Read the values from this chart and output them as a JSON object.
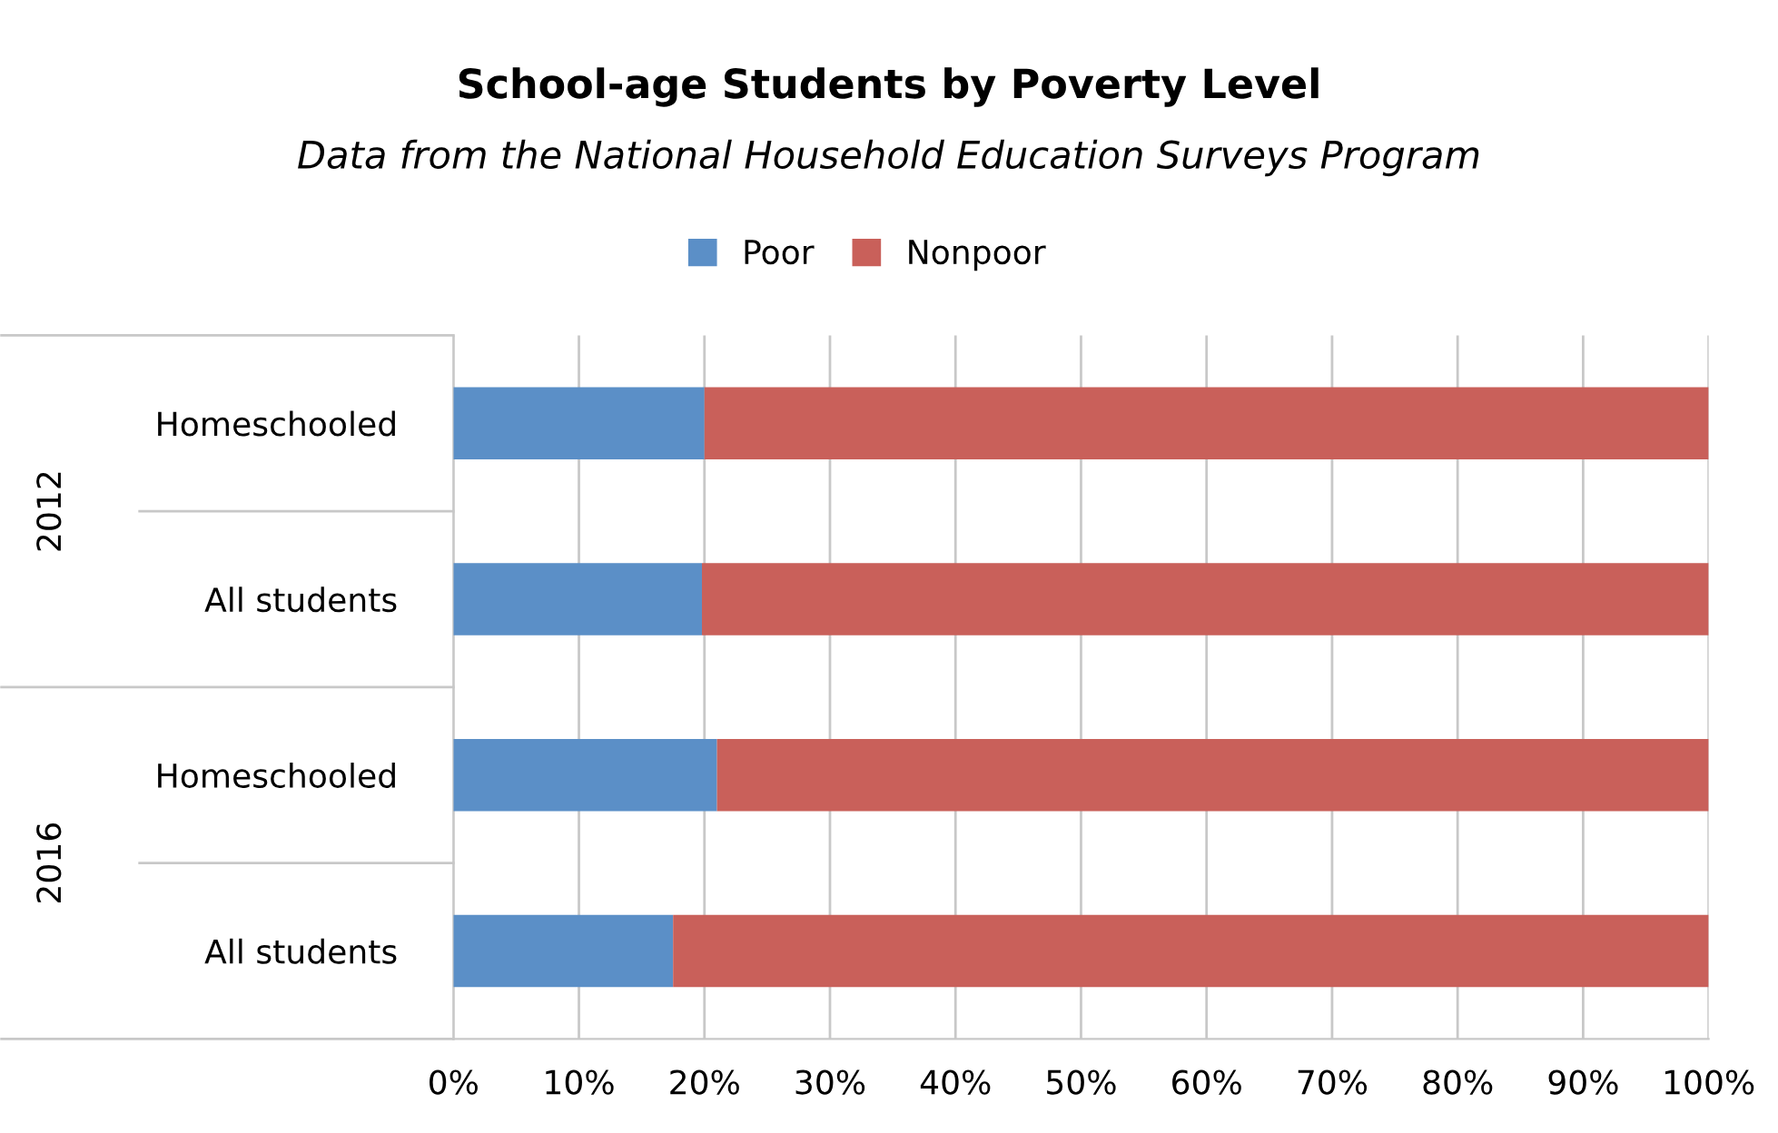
{
  "chart_data": {
    "type": "bar",
    "orientation": "horizontal",
    "stacked": true,
    "title": "School-age Students by Poverty Level",
    "subtitle": "Data from the National Household Education Surveys Program",
    "categories": [
      "Homeschooled",
      "All students",
      "Homeschooled",
      "All students"
    ],
    "annotations": [
      "2012",
      "2016"
    ],
    "series": [
      {
        "name": "Poor",
        "color": "#5b8fc7",
        "values": [
          20,
          19.8,
          21,
          17.5
        ]
      },
      {
        "name": "Nonpoor",
        "color": "#c9605a",
        "values": [
          80,
          80.2,
          79,
          82.5
        ]
      }
    ],
    "xlim": [
      0,
      100
    ],
    "xticks": [
      {
        "value": 0,
        "label": "0%"
      },
      {
        "value": 10,
        "label": "10%"
      },
      {
        "value": 20,
        "label": "20%"
      },
      {
        "value": 30,
        "label": "30%"
      },
      {
        "value": 40,
        "label": "40%"
      },
      {
        "value": 50,
        "label": "50%"
      },
      {
        "value": 60,
        "label": "60%"
      },
      {
        "value": 70,
        "label": "70%"
      },
      {
        "value": 80,
        "label": "80%"
      },
      {
        "value": 90,
        "label": "90%"
      },
      {
        "value": 100,
        "label": "100%"
      }
    ],
    "grid": "x",
    "legend": "top"
  }
}
